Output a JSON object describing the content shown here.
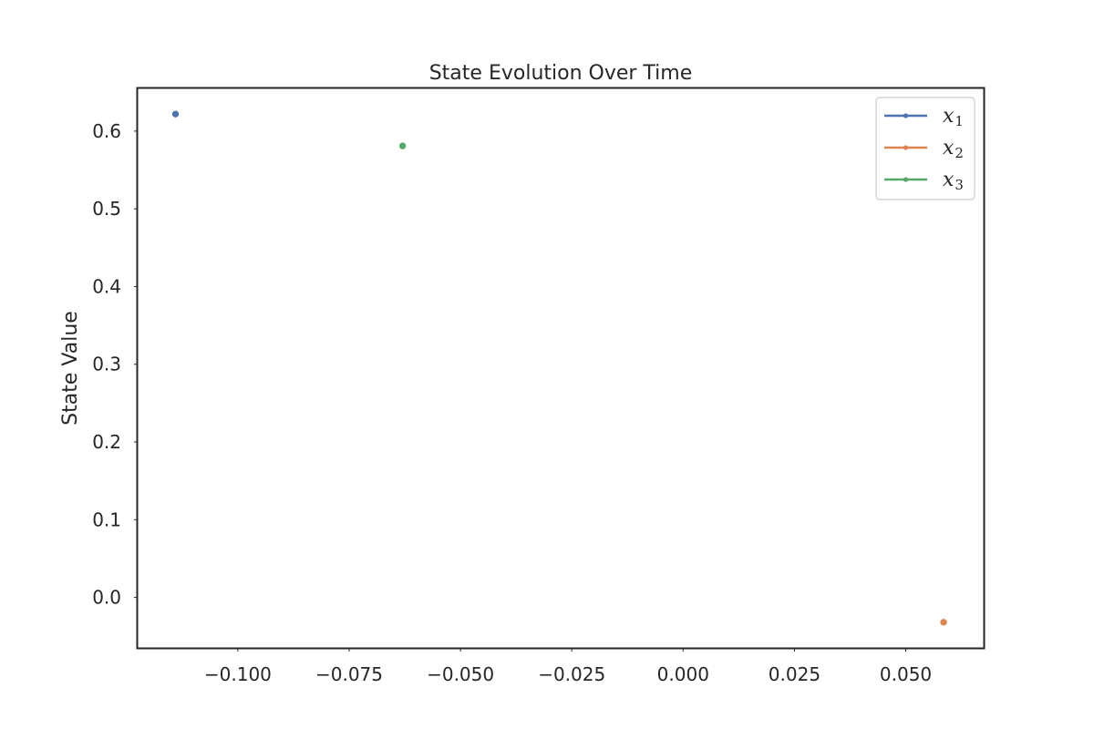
{
  "chart_data": {
    "type": "line",
    "title": "State Evolution Over Time",
    "xlabel": "",
    "ylabel": "State Value",
    "xlim": [
      -0.1225,
      0.0675
    ],
    "ylim": [
      -0.065,
      0.655
    ],
    "x_ticks": [
      -0.1,
      -0.075,
      -0.05,
      -0.025,
      0.0,
      0.025,
      0.05
    ],
    "x_tick_labels": [
      "−0.100",
      "−0.075",
      "−0.050",
      "−0.025",
      "0.000",
      "0.025",
      "0.050"
    ],
    "y_ticks": [
      0.0,
      0.1,
      0.2,
      0.3,
      0.4,
      0.5,
      0.6
    ],
    "y_tick_labels": [
      "0.0",
      "0.1",
      "0.2",
      "0.3",
      "0.4",
      "0.5",
      "0.6"
    ],
    "grid": false,
    "legend_position": "top-right",
    "series": [
      {
        "name": "x",
        "subscript": "1",
        "color": "#4c72b0",
        "points": [
          {
            "x": -0.114,
            "y": 0.622
          }
        ]
      },
      {
        "name": "x",
        "subscript": "2",
        "color": "#dd8452",
        "points": [
          {
            "x": 0.0585,
            "y": -0.032
          }
        ]
      },
      {
        "name": "x",
        "subscript": "3",
        "color": "#55a868",
        "points": [
          {
            "x": -0.063,
            "y": 0.581
          }
        ]
      }
    ]
  }
}
